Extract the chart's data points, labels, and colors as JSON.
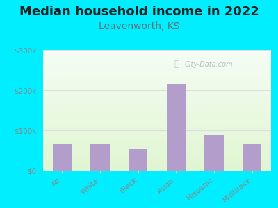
{
  "title": "Median household income in 2022",
  "subtitle": "Leavenworth, KS",
  "categories": [
    "All",
    "White",
    "Black",
    "Asian",
    "Hispanic",
    "Multirace"
  ],
  "values": [
    65000,
    65000,
    53000,
    215000,
    90000,
    65000
  ],
  "bar_color": "#b39dca",
  "background_outer": "#00eeff",
  "title_color": "#222222",
  "subtitle_color": "#6d6d6d",
  "tick_color": "#888888",
  "ylim": [
    0,
    300000
  ],
  "yticks": [
    0,
    100000,
    200000,
    300000
  ],
  "ytick_labels": [
    "$0",
    "$100k",
    "$200k",
    "$300k"
  ],
  "watermark": "City-Data.com",
  "title_fontsize": 13,
  "subtitle_fontsize": 10,
  "grid_color": "#dddddd"
}
